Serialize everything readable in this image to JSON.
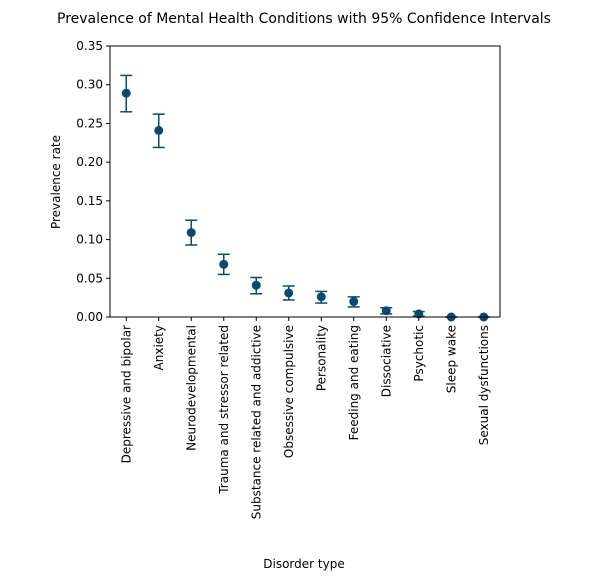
{
  "chart_data": {
    "type": "scatter",
    "title": "Prevalence of Mental Health Conditions with 95% Confidence Intervals",
    "xlabel": "Disorder type",
    "ylabel": "Prevalence rate",
    "ylim": [
      0,
      0.35
    ],
    "yticks": [
      "0.00",
      "0.05",
      "0.10",
      "0.15",
      "0.20",
      "0.25",
      "0.30",
      "0.35"
    ],
    "grid": false,
    "legend": "none",
    "color": "#0b4a6f",
    "categories": [
      "Depressive and bipolar",
      "Anxiety",
      "Neurodevelopmental",
      "Trauma and stressor related",
      "Substance related and addictive",
      "Obsessive compulsive",
      "Personality",
      "Feeding and eating",
      "Dissociative",
      "Psychotic",
      "Sleep wake",
      "Sexual dysfunctions"
    ],
    "values": [
      0.289,
      0.241,
      0.109,
      0.068,
      0.041,
      0.031,
      0.026,
      0.02,
      0.008,
      0.004,
      0.0,
      0.0
    ],
    "ci_lower": [
      0.265,
      0.219,
      0.093,
      0.055,
      0.03,
      0.022,
      0.018,
      0.013,
      0.004,
      0.001,
      0.0,
      0.0
    ],
    "ci_upper": [
      0.312,
      0.262,
      0.125,
      0.081,
      0.051,
      0.04,
      0.033,
      0.026,
      0.012,
      0.007,
      0.0,
      0.0
    ]
  }
}
